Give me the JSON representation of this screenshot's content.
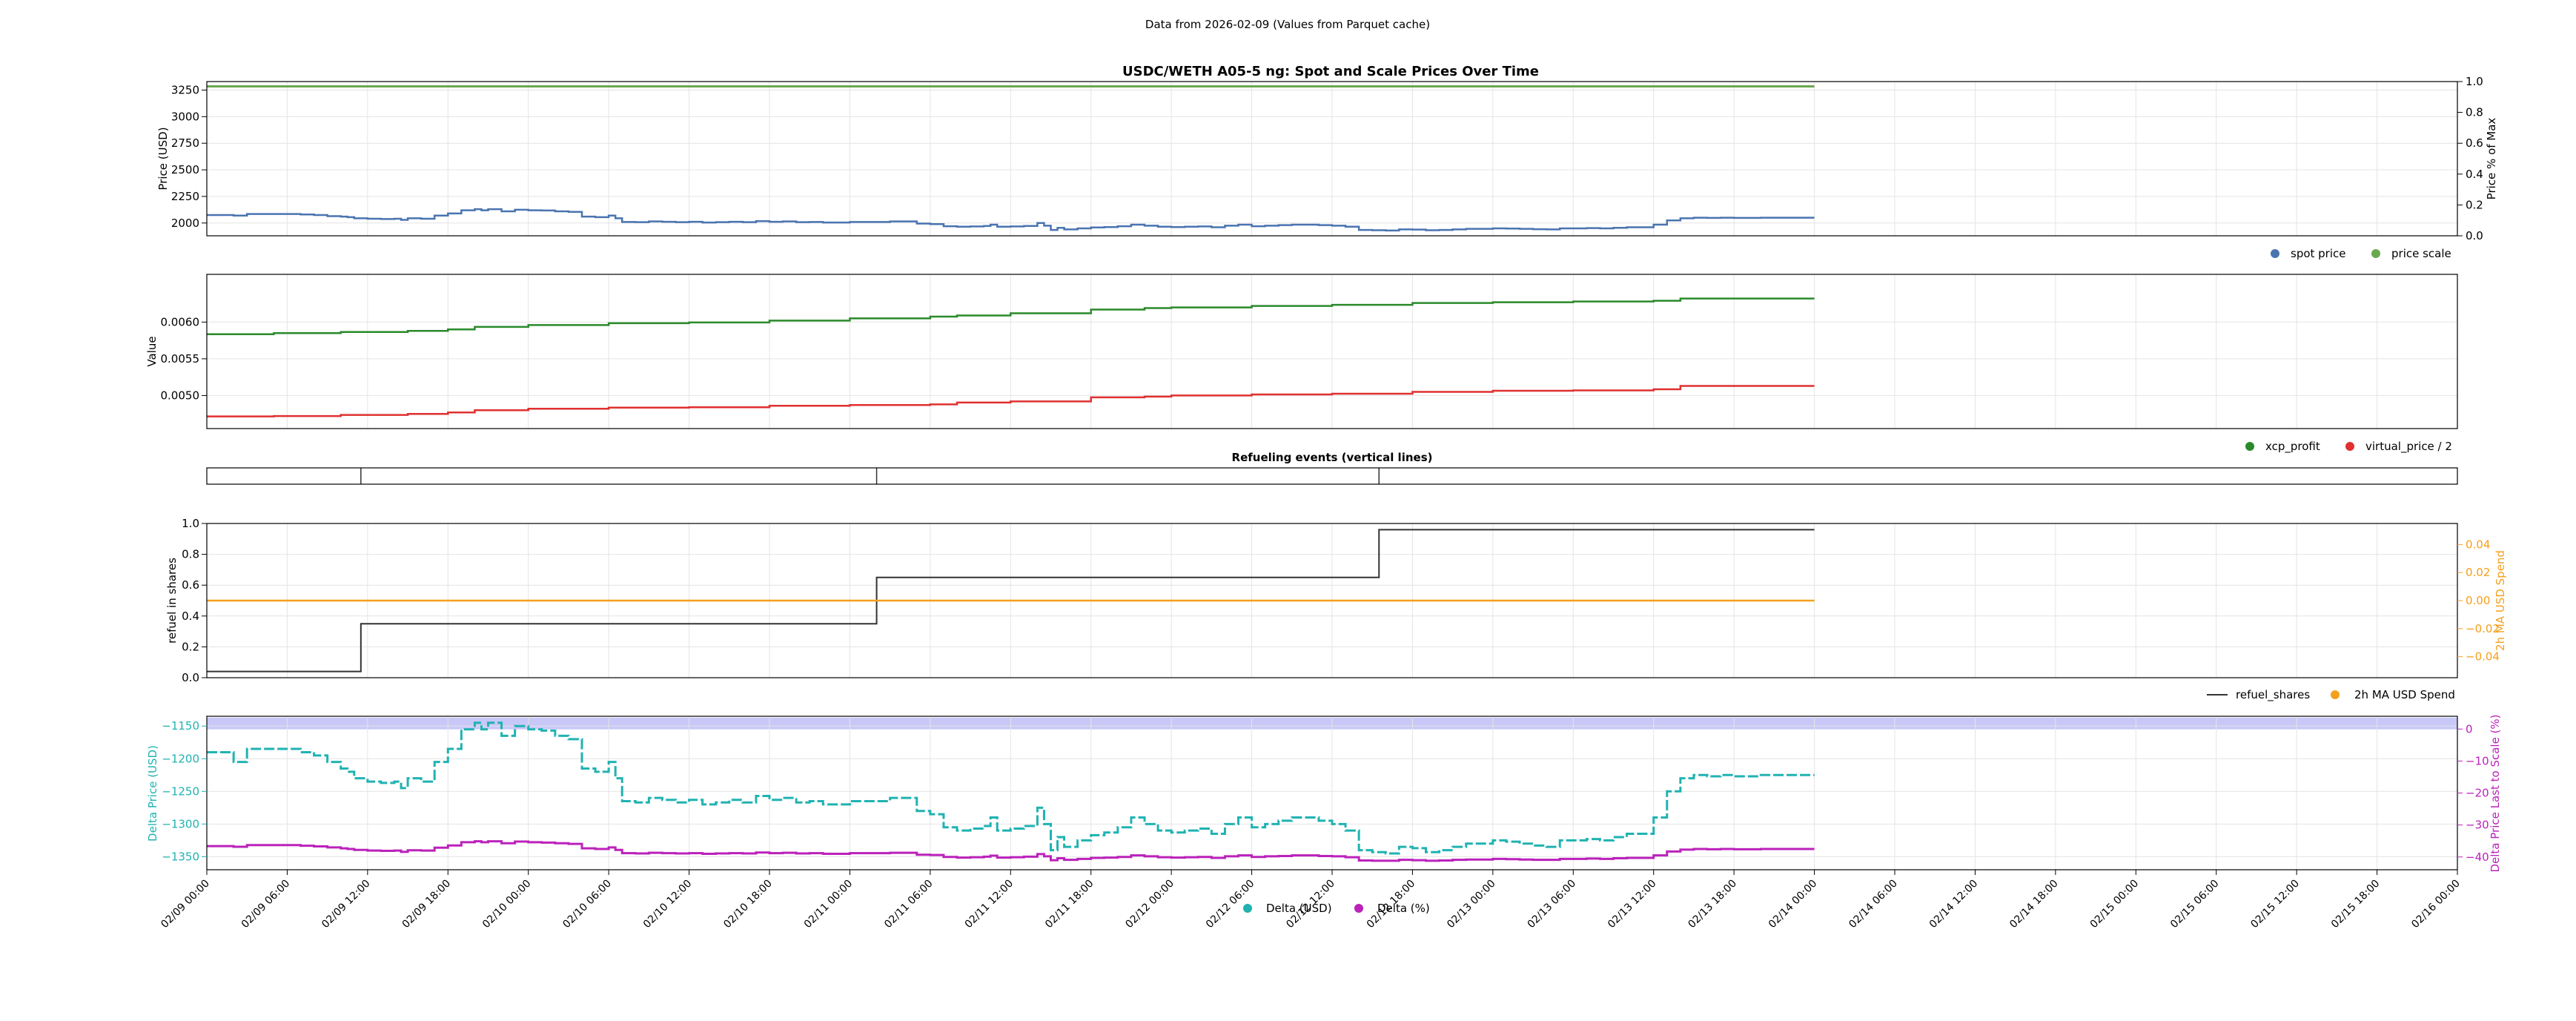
{
  "figure": {
    "header": "Data from 2026-02-09 (Values from Parquet cache)",
    "x_ticks": [
      "02/09 00:00",
      "02/09 06:00",
      "02/09 12:00",
      "02/09 18:00",
      "02/10 00:00",
      "02/10 06:00",
      "02/10 12:00",
      "02/10 18:00",
      "02/11 00:00",
      "02/11 06:00",
      "02/11 12:00",
      "02/11 18:00",
      "02/12 00:00",
      "02/12 06:00",
      "02/12 12:00",
      "02/12 18:00",
      "02/13 00:00",
      "02/13 06:00",
      "02/13 12:00",
      "02/13 18:00",
      "02/14 00:00",
      "02/14 06:00",
      "02/14 12:00",
      "02/14 18:00",
      "02/15 00:00",
      "02/15 06:00",
      "02/15 12:00",
      "02/15 18:00",
      "02/16 00:00"
    ],
    "x_range_hours": [
      0,
      168
    ],
    "data_end_hour": 120
  },
  "chart_data": [
    {
      "id": "prices",
      "type": "line",
      "title": "USDC/WETH A05-5 ng: Spot and Scale Prices Over Time",
      "ylabel": "Price (USD)",
      "ylabel_right": "Price % of Max",
      "ylim": [
        1880,
        3330
      ],
      "yticks": [
        "2000",
        "2250",
        "2500",
        "2750",
        "3000",
        "3250"
      ],
      "ylim_right": [
        0,
        1
      ],
      "yticks_right": [
        "0.0",
        "0.2",
        "0.4",
        "0.6",
        "0.8",
        "1.0"
      ],
      "grid": true,
      "legend_position": "bottom-right",
      "series": [
        {
          "name": "spot price",
          "color": "#4a74b0",
          "step": true,
          "x": [
            0,
            2,
            3,
            6,
            7,
            8,
            9,
            10,
            10.5,
            11,
            12,
            13,
            14,
            14.5,
            15,
            16,
            17,
            18,
            19,
            20,
            20.5,
            21,
            22,
            23,
            24,
            25,
            26,
            27,
            28,
            29,
            30,
            30.5,
            31,
            32,
            33,
            34,
            35,
            36,
            37,
            38,
            39,
            40,
            41,
            42,
            43,
            44,
            45,
            46,
            48,
            50,
            51,
            52,
            53,
            54,
            55,
            56,
            57,
            58,
            58.5,
            59,
            60,
            61,
            62,
            62.5,
            63,
            63.5,
            64,
            65,
            66,
            67,
            68,
            69,
            70,
            71,
            72,
            73,
            74,
            75,
            76,
            77,
            78,
            79,
            80,
            81,
            82,
            83,
            84,
            85,
            86,
            87,
            88,
            89,
            90,
            91,
            92,
            93,
            94,
            95,
            96,
            97,
            98,
            99,
            100,
            101,
            102,
            103,
            104,
            105,
            106,
            107,
            108,
            109,
            110,
            111,
            112,
            113,
            114,
            115,
            116,
            117,
            118,
            119,
            120
          ],
          "y": [
            2075,
            2070,
            2085,
            2085,
            2080,
            2075,
            2065,
            2060,
            2055,
            2045,
            2040,
            2038,
            2040,
            2030,
            2045,
            2040,
            2070,
            2090,
            2120,
            2130,
            2120,
            2130,
            2110,
            2125,
            2120,
            2118,
            2110,
            2105,
            2060,
            2055,
            2070,
            2045,
            2010,
            2008,
            2015,
            2012,
            2008,
            2012,
            2005,
            2008,
            2012,
            2008,
            2018,
            2012,
            2015,
            2008,
            2010,
            2005,
            2010,
            2010,
            2015,
            2015,
            1995,
            1990,
            1970,
            1965,
            1968,
            1972,
            1985,
            1965,
            1968,
            1972,
            2000,
            1975,
            1935,
            1955,
            1940,
            1950,
            1958,
            1962,
            1970,
            1985,
            1975,
            1965,
            1962,
            1965,
            1968,
            1960,
            1975,
            1985,
            1970,
            1975,
            1980,
            1985,
            1985,
            1980,
            1975,
            1965,
            1935,
            1932,
            1930,
            1940,
            1938,
            1932,
            1935,
            1940,
            1945,
            1945,
            1950,
            1948,
            1945,
            1942,
            1940,
            1950,
            1950,
            1952,
            1950,
            1955,
            1960,
            1960,
            1985,
            2025,
            2045,
            2050,
            2048,
            2050,
            2048,
            2048,
            2050,
            2050,
            2050,
            2050,
            2050
          ]
        },
        {
          "name": "price scale",
          "color": "#6aa84f",
          "step": false,
          "x": [
            0,
            120
          ],
          "y": [
            3285,
            3285
          ]
        }
      ]
    },
    {
      "id": "values",
      "type": "line",
      "ylabel": "Value",
      "ylim": [
        0.00455,
        0.00665
      ],
      "yticks": [
        "0.0050",
        "0.0055",
        "0.0060"
      ],
      "grid": true,
      "legend_position": "bottom-right",
      "series": [
        {
          "name": "xcp_profit",
          "color": "#2a8a2a",
          "step": true,
          "x": [
            0,
            5,
            10,
            15,
            18,
            20,
            24,
            30,
            36,
            42,
            48,
            54,
            56,
            60,
            66,
            70,
            72,
            78,
            84,
            90,
            96,
            102,
            108,
            110,
            120
          ],
          "y": [
            0.005835,
            0.00585,
            0.005865,
            0.00588,
            0.0059,
            0.005935,
            0.00596,
            0.005985,
            0.005995,
            0.00602,
            0.00605,
            0.006075,
            0.00609,
            0.00612,
            0.00617,
            0.00619,
            0.0062,
            0.00622,
            0.006235,
            0.00626,
            0.00627,
            0.00628,
            0.00629,
            0.00632,
            0.00632
          ]
        },
        {
          "name": "virtual_price / 2",
          "color": "#e03030",
          "step": true,
          "x": [
            0,
            5,
            10,
            15,
            18,
            20,
            24,
            30,
            36,
            42,
            48,
            54,
            56,
            60,
            66,
            70,
            72,
            78,
            84,
            90,
            96,
            102,
            108,
            110,
            120
          ],
          "y": [
            0.004715,
            0.00472,
            0.004735,
            0.00475,
            0.00477,
            0.0048,
            0.00482,
            0.004835,
            0.00484,
            0.00486,
            0.00487,
            0.00488,
            0.004905,
            0.00492,
            0.004975,
            0.004985,
            0.005,
            0.005015,
            0.005025,
            0.00505,
            0.005065,
            0.00507,
            0.005085,
            0.00513,
            0.00513
          ]
        }
      ]
    },
    {
      "id": "refuel-events",
      "type": "line",
      "title": "Refueling events (vertical lines)",
      "event_hours": [
        11.5,
        50,
        87.5
      ]
    },
    {
      "id": "refuel",
      "type": "line",
      "ylabel": "refuel in shares",
      "ylabel_right": "2h MA USD Spend",
      "ylim": [
        0,
        1
      ],
      "yticks": [
        "0.0",
        "0.2",
        "0.4",
        "0.6",
        "0.8",
        "1.0"
      ],
      "ylim_right": [
        -0.055,
        0.055
      ],
      "yticks_right": [
        "−0.04",
        "−0.02",
        "0.00",
        "0.02",
        "0.04"
      ],
      "yticks_right_values": [
        -0.04,
        -0.02,
        0,
        0.02,
        0.04
      ],
      "grid": true,
      "legend_position": "bottom-right",
      "series": [
        {
          "name": "refuel_shares",
          "color": "#333333",
          "step": true,
          "x": [
            0,
            11.5,
            50,
            87.5,
            120
          ],
          "y": [
            0.04,
            0.35,
            0.65,
            0.96,
            0.96
          ]
        },
        {
          "name": "2h MA USD Spend",
          "color": "#f4a01c",
          "step": false,
          "axis": "right",
          "x": [
            0,
            120
          ],
          "y": [
            0,
            0
          ]
        }
      ]
    },
    {
      "id": "delta",
      "type": "scatter",
      "ylabel": "Delta Price (USD)",
      "ylabel_right": "Delta Price Last to Scale (%)",
      "ylim": [
        -1370,
        -1135
      ],
      "yticks": [
        "−1350",
        "−1300",
        "−1250",
        "−1200",
        "−1150"
      ],
      "yticks_values": [
        -1350,
        -1300,
        -1250,
        -1200,
        -1150
      ],
      "ylim_right": [
        -44,
        4
      ],
      "yticks_right": [
        "−40",
        "−30",
        "−20",
        "−10",
        "0"
      ],
      "yticks_right_values": [
        -40,
        -30,
        -20,
        -10,
        0
      ],
      "band": [
        -1155,
        -1137
      ],
      "band_color": "#c8c8f8",
      "grid": true,
      "legend_position": "bottom-center",
      "series": [
        {
          "name": "Delta (USD)",
          "color": "#20b2b2",
          "step": true,
          "x": [
            0,
            2,
            3,
            6,
            7,
            8,
            9,
            10,
            10.5,
            11,
            12,
            13,
            14,
            14.5,
            15,
            16,
            17,
            18,
            19,
            20,
            20.5,
            21,
            22,
            23,
            24,
            25,
            26,
            27,
            28,
            29,
            30,
            30.5,
            31,
            32,
            33,
            34,
            35,
            36,
            37,
            38,
            39,
            40,
            41,
            42,
            43,
            44,
            45,
            46,
            48,
            50,
            51,
            52,
            53,
            54,
            55,
            56,
            57,
            58,
            58.5,
            59,
            60,
            61,
            62,
            62.5,
            63,
            63.5,
            64,
            65,
            66,
            67,
            68,
            69,
            70,
            71,
            72,
            73,
            74,
            75,
            76,
            77,
            78,
            79,
            80,
            81,
            82,
            83,
            84,
            85,
            86,
            87,
            88,
            89,
            90,
            91,
            92,
            93,
            94,
            95,
            96,
            97,
            98,
            99,
            100,
            101,
            102,
            103,
            104,
            105,
            106,
            107,
            108,
            109,
            110,
            111,
            112,
            113,
            114,
            115,
            116,
            117,
            118,
            119,
            120
          ],
          "y": [
            -1190,
            -1205,
            -1185,
            -1185,
            -1190,
            -1195,
            -1205,
            -1215,
            -1220,
            -1230,
            -1235,
            -1237,
            -1235,
            -1245,
            -1230,
            -1235,
            -1205,
            -1185,
            -1155,
            -1145,
            -1155,
            -1145,
            -1165,
            -1150,
            -1155,
            -1157,
            -1165,
            -1170,
            -1215,
            -1220,
            -1205,
            -1230,
            -1265,
            -1267,
            -1260,
            -1263,
            -1267,
            -1263,
            -1270,
            -1267,
            -1263,
            -1267,
            -1257,
            -1263,
            -1260,
            -1267,
            -1265,
            -1270,
            -1265,
            -1265,
            -1260,
            -1260,
            -1280,
            -1285,
            -1305,
            -1310,
            -1307,
            -1303,
            -1290,
            -1310,
            -1307,
            -1303,
            -1275,
            -1300,
            -1340,
            -1320,
            -1335,
            -1325,
            -1317,
            -1313,
            -1305,
            -1290,
            -1300,
            -1310,
            -1313,
            -1310,
            -1307,
            -1315,
            -1300,
            -1290,
            -1305,
            -1300,
            -1295,
            -1290,
            -1290,
            -1295,
            -1300,
            -1310,
            -1340,
            -1343,
            -1345,
            -1335,
            -1337,
            -1343,
            -1340,
            -1335,
            -1330,
            -1330,
            -1325,
            -1327,
            -1330,
            -1333,
            -1335,
            -1325,
            -1325,
            -1323,
            -1325,
            -1320,
            -1315,
            -1315,
            -1290,
            -1250,
            -1230,
            -1225,
            -1227,
            -1225,
            -1227,
            -1227,
            -1225,
            -1225,
            -1225,
            -1225,
            -1225
          ]
        },
        {
          "name": "Delta (%)",
          "color": "#bb22bb",
          "axis": "right",
          "step": true,
          "x": [
            0,
            2,
            3,
            6,
            7,
            8,
            9,
            10,
            10.5,
            11,
            12,
            13,
            14,
            14.5,
            15,
            16,
            17,
            18,
            19,
            20,
            20.5,
            21,
            22,
            23,
            24,
            25,
            26,
            27,
            28,
            29,
            30,
            30.5,
            31,
            32,
            33,
            34,
            35,
            36,
            37,
            38,
            39,
            40,
            41,
            42,
            43,
            44,
            45,
            46,
            48,
            50,
            51,
            52,
            53,
            54,
            55,
            56,
            57,
            58,
            58.5,
            59,
            60,
            61,
            62,
            62.5,
            63,
            63.5,
            64,
            65,
            66,
            67,
            68,
            69,
            70,
            71,
            72,
            73,
            74,
            75,
            76,
            77,
            78,
            79,
            80,
            81,
            82,
            83,
            84,
            85,
            86,
            87,
            88,
            89,
            90,
            91,
            92,
            93,
            94,
            95,
            96,
            97,
            98,
            99,
            100,
            101,
            102,
            103,
            104,
            105,
            106,
            107,
            108,
            109,
            110,
            111,
            112,
            113,
            114,
            115,
            116,
            117,
            118,
            119,
            120
          ],
          "y": [
            -36.6,
            -36.8,
            -36.3,
            -36.3,
            -36.5,
            -36.7,
            -37.0,
            -37.3,
            -37.5,
            -37.8,
            -38.0,
            -38.1,
            -38.0,
            -38.4,
            -37.9,
            -38.0,
            -37.1,
            -36.4,
            -35.4,
            -35.1,
            -35.4,
            -35.1,
            -35.7,
            -35.2,
            -35.4,
            -35.5,
            -35.7,
            -35.9,
            -37.3,
            -37.5,
            -37.0,
            -37.8,
            -38.8,
            -38.9,
            -38.7,
            -38.8,
            -38.9,
            -38.8,
            -39.0,
            -38.9,
            -38.8,
            -38.9,
            -38.6,
            -38.8,
            -38.7,
            -38.9,
            -38.8,
            -39.0,
            -38.8,
            -38.8,
            -38.7,
            -38.7,
            -39.3,
            -39.4,
            -40.0,
            -40.2,
            -40.1,
            -39.9,
            -39.6,
            -40.2,
            -40.1,
            -39.9,
            -39.1,
            -39.8,
            -41.0,
            -40.4,
            -40.9,
            -40.6,
            -40.3,
            -40.2,
            -40.0,
            -39.5,
            -39.8,
            -40.1,
            -40.2,
            -40.1,
            -40.0,
            -40.3,
            -39.8,
            -39.5,
            -40.0,
            -39.8,
            -39.7,
            -39.5,
            -39.5,
            -39.7,
            -39.8,
            -40.1,
            -41.1,
            -41.2,
            -41.2,
            -40.9,
            -41.0,
            -41.2,
            -41.1,
            -40.9,
            -40.8,
            -40.8,
            -40.6,
            -40.7,
            -40.8,
            -40.9,
            -40.9,
            -40.6,
            -40.6,
            -40.5,
            -40.6,
            -40.4,
            -40.3,
            -40.3,
            -39.5,
            -38.3,
            -37.7,
            -37.5,
            -37.6,
            -37.5,
            -37.6,
            -37.6,
            -37.5,
            -37.5,
            -37.5,
            -37.5,
            -37.5
          ]
        }
      ]
    }
  ]
}
